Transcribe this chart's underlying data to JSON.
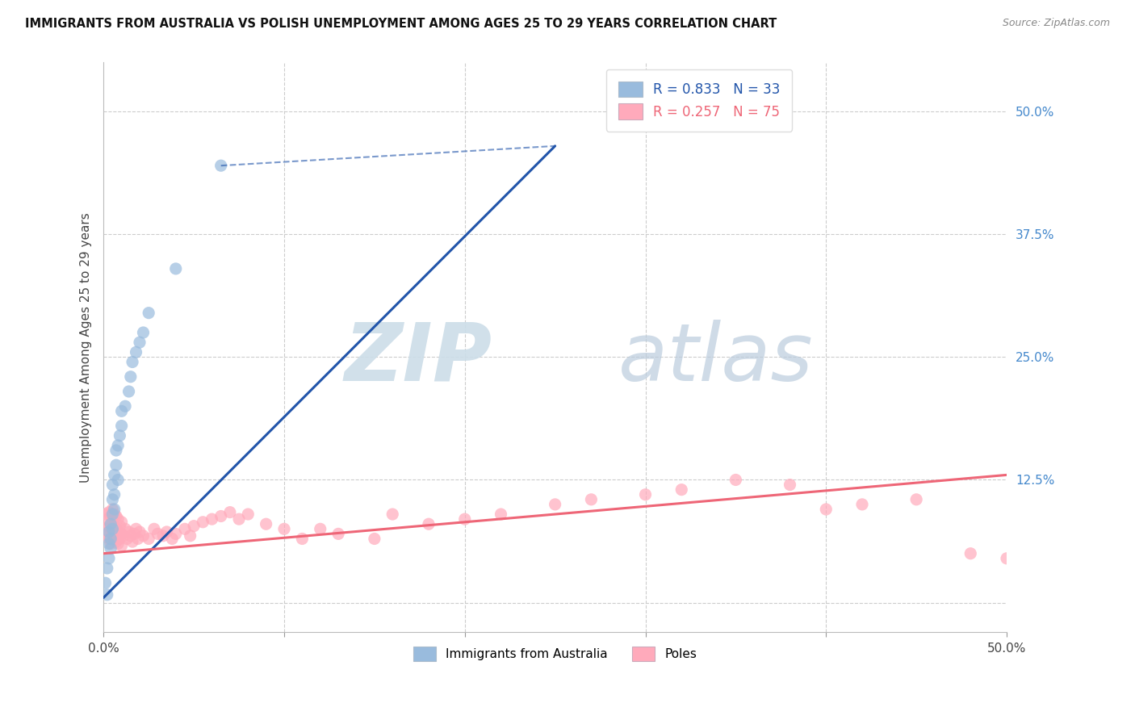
{
  "title": "IMMIGRANTS FROM AUSTRALIA VS POLISH UNEMPLOYMENT AMONG AGES 25 TO 29 YEARS CORRELATION CHART",
  "source": "Source: ZipAtlas.com",
  "ylabel": "Unemployment Among Ages 25 to 29 years",
  "xlim": [
    0.0,
    0.5
  ],
  "ylim": [
    -0.03,
    0.55
  ],
  "legend_R_blue": "R = 0.833",
  "legend_N_blue": "N = 33",
  "legend_R_pink": "R = 0.257",
  "legend_N_pink": "N = 75",
  "blue_color": "#99BBDD",
  "pink_color": "#FFAABB",
  "trendline_blue_color": "#2255AA",
  "trendline_pink_color": "#EE6677",
  "blue_scatter_x": [
    0.001,
    0.002,
    0.002,
    0.003,
    0.003,
    0.003,
    0.004,
    0.004,
    0.004,
    0.005,
    0.005,
    0.005,
    0.005,
    0.006,
    0.006,
    0.006,
    0.007,
    0.007,
    0.008,
    0.008,
    0.009,
    0.01,
    0.01,
    0.012,
    0.014,
    0.015,
    0.016,
    0.018,
    0.02,
    0.022,
    0.025,
    0.04,
    0.065
  ],
  "blue_scatter_y": [
    0.02,
    0.008,
    0.035,
    0.045,
    0.06,
    0.072,
    0.055,
    0.08,
    0.065,
    0.09,
    0.105,
    0.12,
    0.075,
    0.11,
    0.13,
    0.095,
    0.14,
    0.155,
    0.125,
    0.16,
    0.17,
    0.18,
    0.195,
    0.2,
    0.215,
    0.23,
    0.245,
    0.255,
    0.265,
    0.275,
    0.295,
    0.34,
    0.445
  ],
  "blue_trendline_x": [
    0.0,
    0.25
  ],
  "blue_trendline_y": [
    0.005,
    0.465
  ],
  "pink_trendline_x": [
    0.0,
    0.5
  ],
  "pink_trendline_y": [
    0.05,
    0.13
  ],
  "pink_scatter_x": [
    0.001,
    0.001,
    0.002,
    0.002,
    0.003,
    0.003,
    0.003,
    0.004,
    0.004,
    0.004,
    0.005,
    0.005,
    0.005,
    0.006,
    0.006,
    0.006,
    0.007,
    0.007,
    0.007,
    0.008,
    0.008,
    0.008,
    0.009,
    0.009,
    0.01,
    0.01,
    0.01,
    0.011,
    0.012,
    0.013,
    0.014,
    0.015,
    0.016,
    0.017,
    0.018,
    0.019,
    0.02,
    0.022,
    0.025,
    0.028,
    0.03,
    0.033,
    0.035,
    0.038,
    0.04,
    0.045,
    0.048,
    0.05,
    0.055,
    0.06,
    0.065,
    0.07,
    0.075,
    0.08,
    0.09,
    0.1,
    0.11,
    0.12,
    0.13,
    0.15,
    0.16,
    0.18,
    0.2,
    0.22,
    0.25,
    0.27,
    0.3,
    0.32,
    0.35,
    0.38,
    0.4,
    0.42,
    0.45,
    0.48,
    0.5
  ],
  "pink_scatter_y": [
    0.075,
    0.09,
    0.07,
    0.085,
    0.065,
    0.078,
    0.092,
    0.06,
    0.075,
    0.088,
    0.07,
    0.082,
    0.095,
    0.065,
    0.078,
    0.09,
    0.062,
    0.075,
    0.088,
    0.06,
    0.072,
    0.085,
    0.065,
    0.078,
    0.058,
    0.07,
    0.082,
    0.068,
    0.075,
    0.065,
    0.072,
    0.068,
    0.062,
    0.07,
    0.075,
    0.065,
    0.072,
    0.068,
    0.065,
    0.075,
    0.07,
    0.068,
    0.072,
    0.065,
    0.07,
    0.075,
    0.068,
    0.078,
    0.082,
    0.085,
    0.088,
    0.092,
    0.085,
    0.09,
    0.08,
    0.075,
    0.065,
    0.075,
    0.07,
    0.065,
    0.09,
    0.08,
    0.085,
    0.09,
    0.1,
    0.105,
    0.11,
    0.115,
    0.125,
    0.12,
    0.095,
    0.1,
    0.105,
    0.05,
    0.045
  ]
}
